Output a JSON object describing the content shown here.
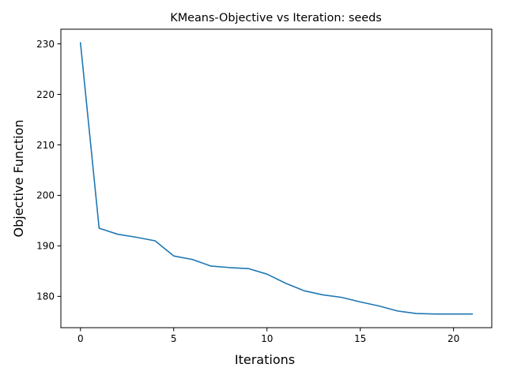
{
  "chart_data": {
    "type": "line",
    "title": "KMeans-Objective vs Iteration: seeds",
    "xlabel": "Iterations",
    "ylabel": "Objective Function",
    "xlim": [
      -1.05,
      22.05
    ],
    "ylim": [
      173.8,
      232.9
    ],
    "xticks": [
      0,
      5,
      10,
      15,
      20
    ],
    "yticks": [
      180,
      190,
      200,
      210,
      220,
      230
    ],
    "grid": false,
    "series": [
      {
        "color": "#1f77b4",
        "x": [
          0,
          1,
          2,
          3,
          4,
          5,
          6,
          7,
          8,
          9,
          10,
          11,
          12,
          13,
          14,
          15,
          16,
          17,
          18,
          19,
          20,
          21
        ],
        "y": [
          230.2,
          193.5,
          192.3,
          191.7,
          191.0,
          188.0,
          187.3,
          186.0,
          185.7,
          185.5,
          184.4,
          182.6,
          181.1,
          180.3,
          179.8,
          178.9,
          178.1,
          177.1,
          176.6,
          176.5,
          176.5,
          176.5
        ]
      }
    ]
  }
}
